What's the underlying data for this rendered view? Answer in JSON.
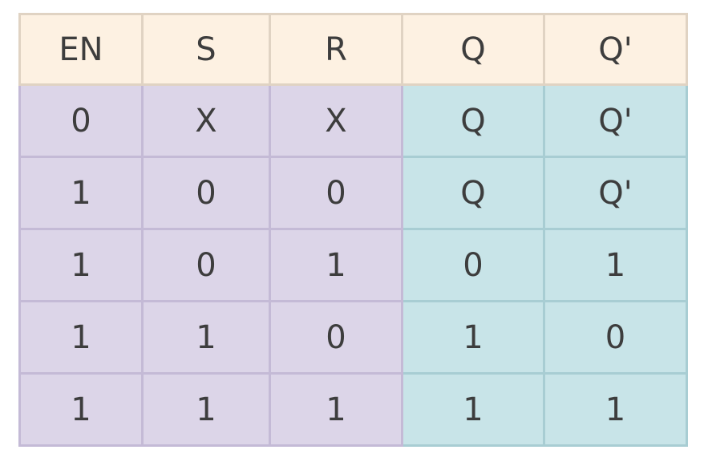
{
  "headers": [
    "EN",
    "S",
    "R",
    "Q",
    "Q'"
  ],
  "rows": [
    [
      "0",
      "X",
      "X",
      "Q",
      "Q'"
    ],
    [
      "1",
      "0",
      "0",
      "Q",
      "Q'"
    ],
    [
      "1",
      "0",
      "1",
      "0",
      "1"
    ],
    [
      "1",
      "1",
      "0",
      "1",
      "0"
    ],
    [
      "1",
      "1",
      "1",
      "1",
      "1"
    ]
  ],
  "colors": {
    "header_bg": "#fdf1e2",
    "input_bg": "#dcd5e8",
    "output_bg": "#c8e4e8",
    "text": "#3d3d3d"
  }
}
